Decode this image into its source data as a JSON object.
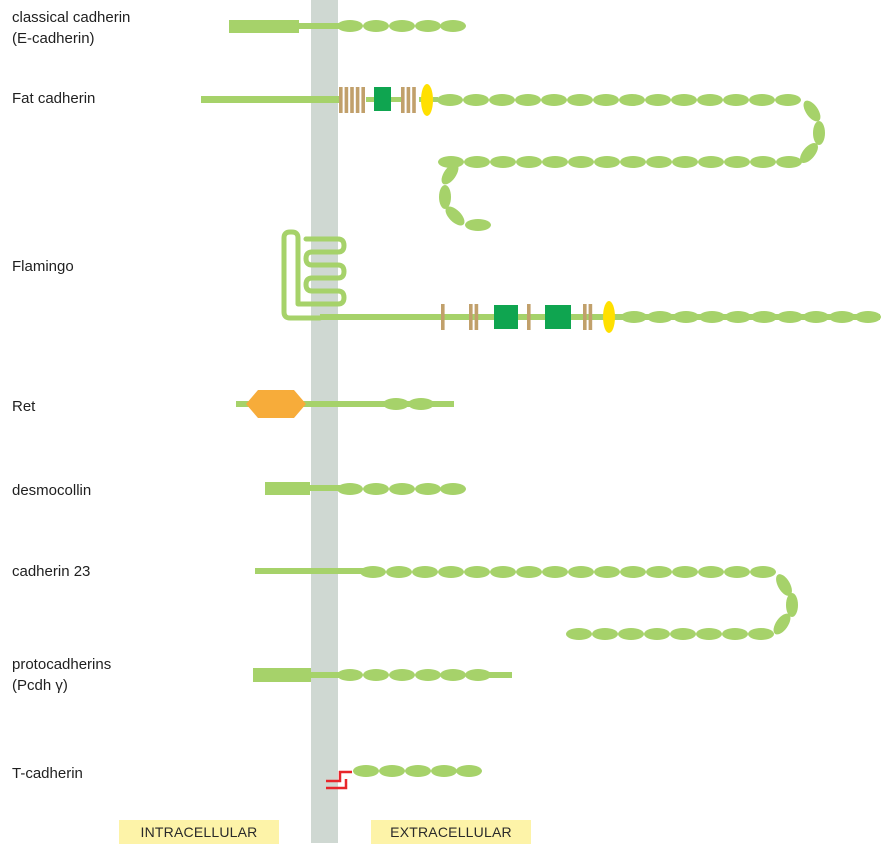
{
  "labels": {
    "classical_1": "classical cadherin",
    "classical_2": "(E-cadherin)",
    "fat": "Fat cadherin",
    "flamingo": "Flamingo",
    "ret": "Ret",
    "desmocollin": "desmocollin",
    "cadherin23": "cadherin 23",
    "protocadherins_1": "protocadherins",
    "protocadherins_2": "(Pcdh γ)",
    "tcadherin": "T-cadherin"
  },
  "regions": {
    "intracellular": "INTRACELLULAR",
    "extracellular": "EXTRACELLULAR"
  },
  "colors": {
    "membrane": "#cfd8d2",
    "cadherin_repeat": "#a6d26a",
    "laminin_g_domain": "#c1a06b",
    "egf_block": "#0fa550",
    "yellow_domain": "#ffe000",
    "kinase_domain": "#f7ac3a",
    "gpi_anchor": "#e8262b",
    "region_tag": "#fdf3a8"
  }
}
